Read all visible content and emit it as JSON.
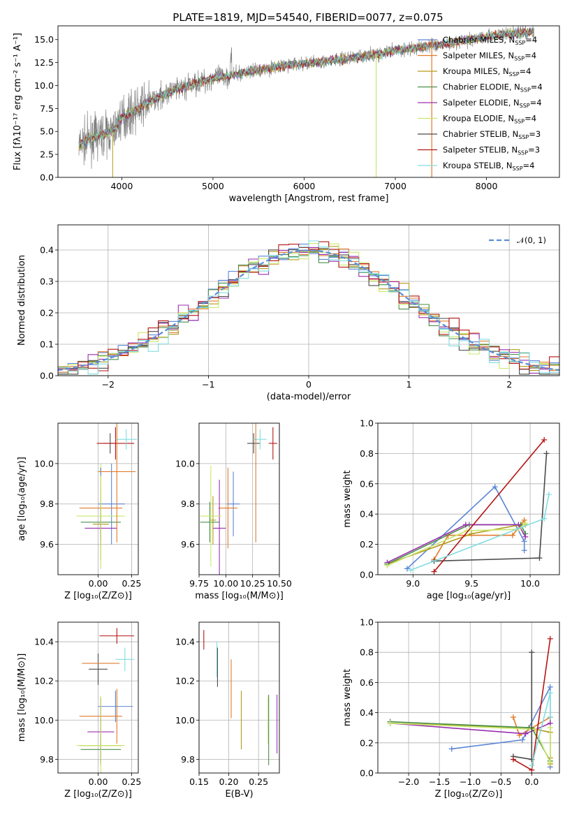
{
  "title": "PLATE=1819, MJD=54540, FIBERID=0077, z=0.075",
  "models": [
    {
      "name": "Chabrier MILES",
      "nssp": "4",
      "color": "#5b85d6"
    },
    {
      "name": "Salpeter MILES",
      "nssp": "4",
      "color": "#e07b2c"
    },
    {
      "name": "Kroupa MILES",
      "nssp": "4",
      "color": "#b49a1c"
    },
    {
      "name": "Chabrier ELODIE",
      "nssp": "4",
      "color": "#4a8f4a"
    },
    {
      "name": "Salpeter ELODIE",
      "nssp": "4",
      "color": "#9a2fb0"
    },
    {
      "name": "Kroupa ELODIE",
      "nssp": "4",
      "color": "#c8e86a"
    },
    {
      "name": "Chabrier STELIB",
      "nssp": "3",
      "color": "#4a4a4a"
    },
    {
      "name": "Salpeter STELIB",
      "nssp": "3",
      "color": "#b51515"
    },
    {
      "name": "Kroupa STELIB",
      "nssp": "4",
      "color": "#80dde0"
    }
  ],
  "chart_data": [
    {
      "id": "spectrum",
      "type": "line",
      "xlabel": "wavelength [Angstrom, rest frame]",
      "ylabel": "Flux [fλ10⁻¹⁷ erg cm⁻² s⁻¹ A⁻¹]",
      "xlim": [
        3300,
        8800
      ],
      "ylim": [
        0,
        16.5
      ],
      "xticks": [
        "4000",
        "5000",
        "6000",
        "7000",
        "8000"
      ],
      "yticks": [
        "0.0",
        "2.5",
        "5.0",
        "7.5",
        "10.0",
        "12.5",
        "15.0"
      ],
      "continuum": {
        "x": [
          3530,
          3700,
          3900,
          4000,
          4100,
          4300,
          4500,
          4800,
          5000,
          5200,
          5500,
          5800,
          6000,
          6300,
          6500,
          6800,
          7000,
          7300,
          7600,
          7900,
          8200,
          8500
        ],
        "y": [
          3.5,
          4.4,
          5.0,
          6.5,
          7.0,
          8.2,
          9.2,
          10.2,
          10.8,
          11.1,
          11.7,
          12.2,
          12.4,
          12.7,
          13.0,
          13.4,
          13.8,
          14.2,
          14.6,
          15.2,
          15.6,
          15.8
        ]
      },
      "legend_position": "right"
    },
    {
      "id": "residual-histogram",
      "type": "histogram",
      "xlabel": "(data-model)/error",
      "ylabel": "Normed distribution",
      "xlim": [
        -2.5,
        2.5
      ],
      "ylim": [
        0,
        0.48
      ],
      "xticks": [
        "−2",
        "−1",
        "0",
        "1",
        "2"
      ],
      "yticks": [
        "0.0",
        "0.1",
        "0.2",
        "0.3",
        "0.4"
      ],
      "reference_curve": "𝒩(0, 1)",
      "grid": true,
      "legend_position": "top-right"
    },
    {
      "id": "age-vs-Z",
      "type": "scatter",
      "xlabel": "Z [log₁₀(Z/Z⊙)]",
      "ylabel": "age  [log₁₀(age/yr)]",
      "xlim": [
        -0.3,
        0.3
      ],
      "ylim": [
        9.45,
        10.2
      ],
      "xticks": [
        "0.00",
        "0.25"
      ],
      "yticks": [
        "9.6",
        "9.8",
        "10.0"
      ],
      "points": [
        {
          "model": 0,
          "x": 0.1,
          "y": 9.8,
          "xerr": 0.1,
          "yerr": 0.2
        },
        {
          "model": 1,
          "x": 0.02,
          "y": 9.78,
          "xerr": 0.16,
          "yerr": 0.2
        },
        {
          "model": 2,
          "x": 0.02,
          "y": 9.7,
          "xerr": 0.06,
          "yerr": 0.18
        },
        {
          "model": 3,
          "x": 0.02,
          "y": 9.71,
          "xerr": 0.15,
          "yerr": 0.08
        },
        {
          "model": 4,
          "x": 0.02,
          "y": 9.68,
          "xerr": 0.12,
          "yerr": 0.07
        },
        {
          "model": 5,
          "x": 0.02,
          "y": 9.74,
          "xerr": 0.18,
          "yerr": 0.26
        },
        {
          "model": 6,
          "x": 0.09,
          "y": 10.1,
          "xerr": 0.05,
          "yerr": 0.05
        },
        {
          "model": 7,
          "x": 0.13,
          "y": 10.1,
          "xerr": 0.14,
          "yerr": 0.08
        },
        {
          "model": 8,
          "x": 0.21,
          "y": 10.12,
          "xerr": 0.08,
          "yerr": 0.05
        },
        {
          "model": 0,
          "x": 0.02,
          "y": 9.96,
          "xerr": 0.0,
          "yerr": 0.02
        },
        {
          "model": 1,
          "x": 0.14,
          "y": 9.96,
          "xerr": 0.14,
          "yerr": 0.35
        }
      ],
      "grid": true
    },
    {
      "id": "age-vs-mass",
      "type": "scatter",
      "xlabel": "mass [log₁₀(M/M⊙)]",
      "ylabel": "",
      "xlim": [
        9.75,
        10.5
      ],
      "ylim": [
        9.45,
        10.2
      ],
      "xticks": [
        "9.75",
        "10.00",
        "10.25",
        "10.50"
      ],
      "yticks": [
        "9.6",
        "9.8",
        "10.0"
      ],
      "points": [
        {
          "model": 0,
          "x": 10.07,
          "y": 9.8,
          "xerr": 0.06,
          "yerr": 0.16
        },
        {
          "model": 1,
          "x": 10.02,
          "y": 9.78,
          "xerr": 0.09,
          "yerr": 0.2
        },
        {
          "model": 2,
          "x": 9.88,
          "y": 9.72,
          "xerr": 0.03,
          "yerr": 0.12
        },
        {
          "model": 3,
          "x": 9.85,
          "y": 9.71,
          "xerr": 0.09,
          "yerr": 0.1
        },
        {
          "model": 4,
          "x": 9.94,
          "y": 9.68,
          "xerr": 0.06,
          "yerr": 0.24
        },
        {
          "model": 5,
          "x": 9.86,
          "y": 9.74,
          "xerr": 0.1,
          "yerr": 0.25
        },
        {
          "model": 6,
          "x": 10.26,
          "y": 10.1,
          "xerr": 0.06,
          "yerr": 0.05
        },
        {
          "model": 7,
          "x": 10.44,
          "y": 10.1,
          "xerr": 0.04,
          "yerr": 0.08
        },
        {
          "model": 8,
          "x": 10.32,
          "y": 10.12,
          "xerr": 0.06,
          "yerr": 0.05
        },
        {
          "model": 1,
          "x": 10.28,
          "y": 9.96,
          "xerr": 0.0,
          "yerr": 0.35
        }
      ],
      "grid": true
    },
    {
      "id": "weight-vs-age",
      "type": "line",
      "xlabel": "age  [log₁₀(age/yr)]",
      "ylabel": "mass weight",
      "xlim": [
        8.7,
        10.25
      ],
      "ylim": [
        0,
        1.0
      ],
      "xticks": [
        "9.0",
        "9.5",
        "10.0"
      ],
      "yticks": [
        "0.0",
        "0.2",
        "0.4",
        "0.6",
        "0.8",
        "1.0"
      ],
      "series": [
        {
          "model": 0,
          "x": [
            8.95,
            9.7,
            9.95,
            9.95
          ],
          "y": [
            0.04,
            0.58,
            0.22,
            0.16
          ]
        },
        {
          "model": 1,
          "x": [
            9.18,
            9.3,
            9.85,
            9.95
          ],
          "y": [
            0.1,
            0.26,
            0.26,
            0.36
          ]
        },
        {
          "model": 2,
          "x": [
            8.78,
            9.5,
            9.92,
            9.96
          ],
          "y": [
            0.07,
            0.27,
            0.33,
            0.33
          ]
        },
        {
          "model": 3,
          "x": [
            8.78,
            9.48,
            9.92,
            9.96
          ],
          "y": [
            0.07,
            0.33,
            0.33,
            0.27
          ]
        },
        {
          "model": 4,
          "x": [
            8.78,
            9.45,
            9.9,
            9.96
          ],
          "y": [
            0.08,
            0.33,
            0.33,
            0.25
          ]
        },
        {
          "model": 5,
          "x": [
            8.78,
            9.46,
            9.9,
            9.96
          ],
          "y": [
            0.06,
            0.29,
            0.3,
            0.34
          ]
        },
        {
          "model": 6,
          "x": [
            9.18,
            10.08,
            10.14
          ],
          "y": [
            0.09,
            0.11,
            0.8
          ]
        },
        {
          "model": 7,
          "x": [
            9.18,
            10.12
          ],
          "y": [
            0.02,
            0.89
          ]
        },
        {
          "model": 8,
          "x": [
            8.98,
            10.12,
            10.16
          ],
          "y": [
            0.03,
            0.37,
            0.53
          ]
        }
      ],
      "grid": true
    },
    {
      "id": "mass-vs-Z",
      "type": "scatter",
      "xlabel": "Z [log₁₀(Z/Z⊙)]",
      "ylabel": "mass [log₁₀(M/M⊙)]",
      "xlim": [
        -0.3,
        0.3
      ],
      "ylim": [
        9.73,
        10.5
      ],
      "xticks": [
        "0.00",
        "0.25"
      ],
      "yticks": [
        "9.8",
        "10.0",
        "10.2",
        "10.4"
      ],
      "points": [
        {
          "model": 0,
          "x": 0.13,
          "y": 10.07,
          "xerr": 0.13,
          "yerr": 0.08
        },
        {
          "model": 1,
          "x": 0.02,
          "y": 10.02,
          "xerr": 0.16,
          "yerr": 0.1
        },
        {
          "model": 2,
          "x": 0.02,
          "y": 9.87,
          "xerr": 0.16,
          "yerr": 0.07
        },
        {
          "model": 3,
          "x": 0.02,
          "y": 9.85,
          "xerr": 0.15,
          "yerr": 0.06
        },
        {
          "model": 4,
          "x": 0.02,
          "y": 9.94,
          "xerr": 0.1,
          "yerr": 0.17
        },
        {
          "model": 5,
          "x": 0.02,
          "y": 9.87,
          "xerr": 0.18,
          "yerr": 0.25
        },
        {
          "model": 6,
          "x": 0.0,
          "y": 10.26,
          "xerr": 0.07,
          "yerr": 0.08
        },
        {
          "model": 7,
          "x": 0.14,
          "y": 10.43,
          "xerr": 0.13,
          "yerr": 0.04
        },
        {
          "model": 8,
          "x": 0.2,
          "y": 10.31,
          "xerr": 0.07,
          "yerr": 0.06
        },
        {
          "model": 1,
          "x": 0.02,
          "y": 10.29,
          "xerr": 0.14,
          "yerr": 0.0
        },
        {
          "model": 1,
          "x": 0.14,
          "y": 10.02,
          "xerr": 0.0,
          "yerr": 0.14
        }
      ],
      "grid": true
    },
    {
      "id": "mass-vs-EBV",
      "type": "scatter",
      "xlabel": "E(B-V)",
      "ylabel": "",
      "xlim": [
        0.15,
        0.285
      ],
      "ylim": [
        9.73,
        10.5
      ],
      "xticks": [
        "0.15",
        "0.20",
        "0.25"
      ],
      "yticks": [
        "9.8",
        "10.0",
        "10.2",
        "10.4"
      ],
      "points": [
        {
          "model": 7,
          "x": 0.158,
          "y": 10.41,
          "yerr": 0.05
        },
        {
          "model": 8,
          "x": 0.18,
          "y": 10.31,
          "yerr": 0.09
        },
        {
          "model": 6,
          "x": 0.181,
          "y": 10.27,
          "yerr": 0.1
        },
        {
          "model": 1,
          "x": 0.204,
          "y": 10.16,
          "yerr": 0.15
        },
        {
          "model": 2,
          "x": 0.221,
          "y": 10.0,
          "yerr": 0.15
        },
        {
          "model": 5,
          "x": 0.266,
          "y": 10.0,
          "yerr": 0.12
        },
        {
          "model": 3,
          "x": 0.267,
          "y": 9.95,
          "yerr": 0.18
        },
        {
          "model": 4,
          "x": 0.281,
          "y": 9.98,
          "yerr": 0.15
        }
      ],
      "grid": true
    },
    {
      "id": "weight-vs-Z",
      "type": "line",
      "xlabel": "Z [log₁₀(Z/Z⊙)]",
      "ylabel": "mass weight",
      "xlim": [
        -2.5,
        0.45
      ],
      "ylim": [
        0,
        1.0
      ],
      "xticks": [
        "−2.0",
        "−1.5",
        "−1.0",
        "−0.5",
        "0.0"
      ],
      "yticks": [
        "0.0",
        "0.2",
        "0.4",
        "0.6",
        "0.8",
        "1.0"
      ],
      "series": [
        {
          "model": 0,
          "x": [
            -1.3,
            -0.15,
            0.3,
            0.3
          ],
          "y": [
            0.16,
            0.22,
            0.57,
            0.04
          ]
        },
        {
          "model": 1,
          "x": [
            -0.3,
            -0.2,
            0.3,
            0.3
          ],
          "y": [
            0.37,
            0.25,
            0.37,
            0.1
          ]
        },
        {
          "model": 2,
          "x": [
            -2.3,
            -0.05,
            0.3,
            0.3
          ],
          "y": [
            0.33,
            0.3,
            0.27,
            0.06
          ]
        },
        {
          "model": 3,
          "x": [
            -2.3,
            0.0,
            0.3
          ],
          "y": [
            0.34,
            0.3,
            0.08
          ]
        },
        {
          "model": 4,
          "x": [
            -2.3,
            -0.1,
            0.3
          ],
          "y": [
            0.33,
            0.26,
            0.33
          ]
        },
        {
          "model": 5,
          "x": [
            -2.3,
            0.05,
            0.3,
            0.3
          ],
          "y": [
            0.33,
            0.29,
            0.07,
            0.3
          ]
        },
        {
          "model": 6,
          "x": [
            -0.3,
            0.0,
            0.0
          ],
          "y": [
            0.11,
            0.09,
            0.8
          ]
        },
        {
          "model": 7,
          "x": [
            -0.3,
            0.0,
            0.3
          ],
          "y": [
            0.09,
            0.02,
            0.89
          ]
        },
        {
          "model": 8,
          "x": [
            0.0,
            0.3,
            0.3
          ],
          "y": [
            0.05,
            0.53,
            0.37
          ]
        }
      ],
      "grid": true
    }
  ]
}
